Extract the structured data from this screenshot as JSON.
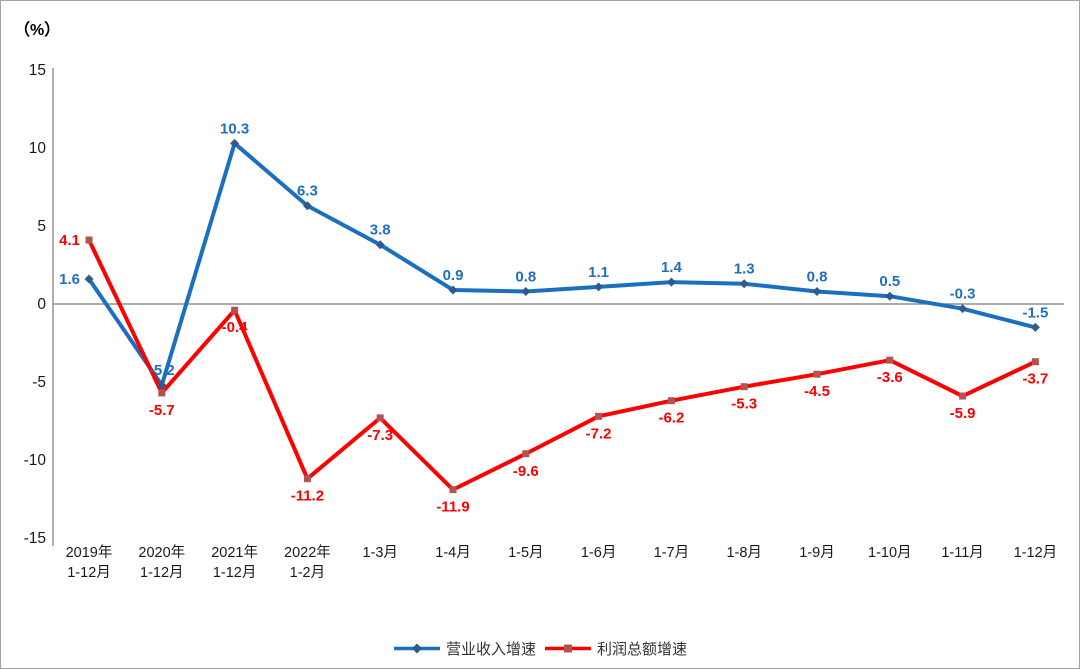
{
  "chart_data": {
    "type": "line",
    "title": "",
    "y_axis_title": "（%）",
    "categories": [
      "2019年\n1-12月",
      "2020年\n1-12月",
      "2021年\n1-12月",
      "2022年\n1-2月",
      "1-3月",
      "1-4月",
      "1-5月",
      "1-6月",
      "1-7月",
      "1-8月",
      "1-9月",
      "1-10月",
      "1-11月",
      "1-12月"
    ],
    "series": [
      {
        "name": "营业收入增速",
        "color": "#1B6FC0",
        "marker": "diamond",
        "marker_color": "#31598C",
        "label_color": "#1F6FBF",
        "values": [
          1.6,
          -5.2,
          10.3,
          6.3,
          3.8,
          0.9,
          0.8,
          1.1,
          1.4,
          1.3,
          0.8,
          0.5,
          -0.3,
          -1.5
        ]
      },
      {
        "name": "利润总额增速",
        "color": "#FF0000",
        "marker": "square",
        "marker_color": "#B2534F",
        "label_color": "#FF0000",
        "values": [
          4.1,
          -5.7,
          -0.4,
          -11.2,
          -7.3,
          -11.9,
          -9.6,
          -7.2,
          -6.2,
          -5.3,
          -4.5,
          -3.6,
          -5.9,
          -3.7
        ]
      }
    ],
    "ylim": [
      -15,
      15
    ],
    "y_tick_step": 5,
    "y_tick_labels": [
      "15",
      "10",
      "5",
      "0",
      "-5",
      "-10",
      "-15"
    ],
    "grid": "zero-line-only",
    "legend_position": "bottom-center",
    "axis_color": "#8F8F8F",
    "tick_label_color": "#1A1A1A"
  }
}
